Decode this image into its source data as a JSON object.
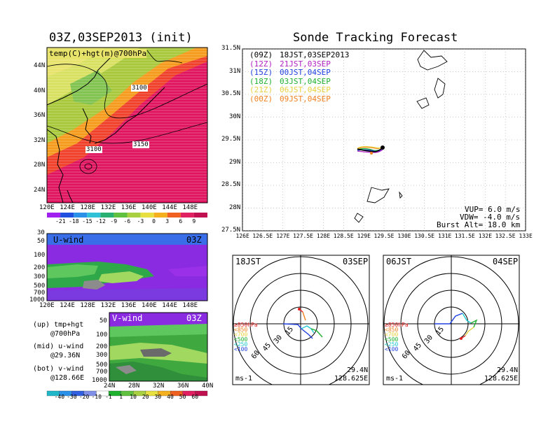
{
  "left_panel": {
    "title": "03Z,03SEP2013 (init)",
    "map_label": "temp(C)+hgt(m)@700hPa",
    "contour_labels": [
      "3100",
      "3150",
      "3100"
    ],
    "lat_ticks": [
      "44N",
      "40N",
      "36N",
      "32N",
      "28N",
      "24N"
    ],
    "lon_ticks": [
      "120E",
      "124E",
      "128E",
      "132E",
      "136E",
      "140E",
      "144E",
      "148E"
    ],
    "temp_colorbar": [
      "-21",
      "-18",
      "-15",
      "-12",
      "-9",
      "-6",
      "-3",
      "0",
      "3",
      "6",
      "9"
    ],
    "u_wind": {
      "label": "U-wind",
      "time": "03Z",
      "p_ticks": [
        "30",
        "50",
        "100",
        "200",
        "300",
        "500",
        "700",
        "1000"
      ],
      "lon_ticks": [
        "120E",
        "124E",
        "128E",
        "132E",
        "136E",
        "140E",
        "144E",
        "148E"
      ]
    },
    "v_wind": {
      "label": "V-wind",
      "time": "03Z",
      "p_ticks": [
        "50",
        "100",
        "200",
        "300",
        "500",
        "700",
        "1000"
      ],
      "lat_ticks": [
        "24N",
        "28N",
        "32N",
        "36N",
        "40N"
      ]
    },
    "wind_colorbar": [
      "-40",
      "-30",
      "-20",
      "-10",
      "-1",
      "1",
      "10",
      "20",
      "30",
      "40",
      "50",
      "60"
    ],
    "legend_notes": [
      [
        "(up) tmp+hgt",
        "@700hPa"
      ],
      [
        "(mid) u-wind",
        "@29.36N"
      ],
      [
        "(bot) v-wind",
        "@128.66E"
      ]
    ]
  },
  "right_panel": {
    "title": "Sonde Tracking Forecast",
    "lat_ticks": [
      "31.5N",
      "31N",
      "30.5N",
      "30N",
      "29.5N",
      "29N",
      "28.5N",
      "28N",
      "27.5N"
    ],
    "lon_ticks": [
      "126E",
      "126.5E",
      "127E",
      "127.5E",
      "128E",
      "128.5E",
      "129E",
      "129.5E",
      "130E",
      "130.5E",
      "131E",
      "131.5E",
      "132E",
      "132.5E",
      "133E"
    ],
    "launches": [
      {
        "utc": "(09Z)",
        "jst": "18JST,03SEP2013",
        "color": "#000000"
      },
      {
        "utc": "(12Z)",
        "jst": "21JST,03SEP",
        "color": "#b020c0"
      },
      {
        "utc": "(15Z)",
        "jst": "00JST,04SEP",
        "color": "#2040e0"
      },
      {
        "utc": "(18Z)",
        "jst": "03JST,04SEP",
        "color": "#20b030"
      },
      {
        "utc": "(21Z)",
        "jst": "06JST,04SEP",
        "color": "#e8d040"
      },
      {
        "utc": "(00Z)",
        "jst": "09JST,04SEP",
        "color": "#f08020"
      }
    ],
    "params": [
      "VUP= 6.0 m/s",
      "VDW= -4.0 m/s",
      "Burst Alt= 18.0 km"
    ]
  },
  "polars": [
    {
      "time": "18JST",
      "date": "03SEP",
      "lat": "29.4N",
      "lon": "128.625E",
      "units": "ms-1"
    },
    {
      "time": "06JST",
      "date": "04SEP",
      "lat": "29.4N",
      "lon": "128.625E",
      "units": "ms-1"
    }
  ],
  "polar_ring_labels": [
    "15",
    "30",
    "45",
    "60"
  ],
  "polar_level_legend": [
    {
      "text": "≥850hPa",
      "color": "#e02020"
    },
    {
      "text": "<850",
      "color": "#f08020"
    },
    {
      "text": "<700",
      "color": "#e8d040"
    },
    {
      "text": "<500",
      "color": "#20b030"
    },
    {
      "text": "<250",
      "color": "#20c8d0"
    },
    {
      "text": "<100",
      "color": "#2040e0"
    }
  ]
}
